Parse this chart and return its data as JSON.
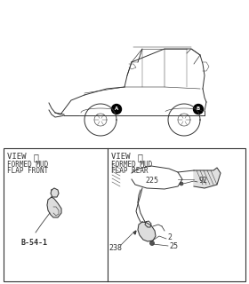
{
  "bg_color": "#ffffff",
  "view_a_label": "VIEW A",
  "view_a_circle": "Ⓐ",
  "view_a_title1": "FORMED MUD",
  "view_a_title2": "FLAP FRONT",
  "view_a_part": "B-54-1",
  "view_b_label": "VIEW B",
  "view_b_circle": "Ⓑ",
  "view_b_title1": "FORMED MUD",
  "view_b_title2": "FLAP REAR",
  "pn_225": "225",
  "pn_92": "92",
  "pn_238": "238",
  "pn_2": "2",
  "pn_25": "25",
  "line_color": "#333333",
  "lw": 0.7,
  "fig_w": 2.8,
  "fig_h": 3.2,
  "dpi": 100
}
